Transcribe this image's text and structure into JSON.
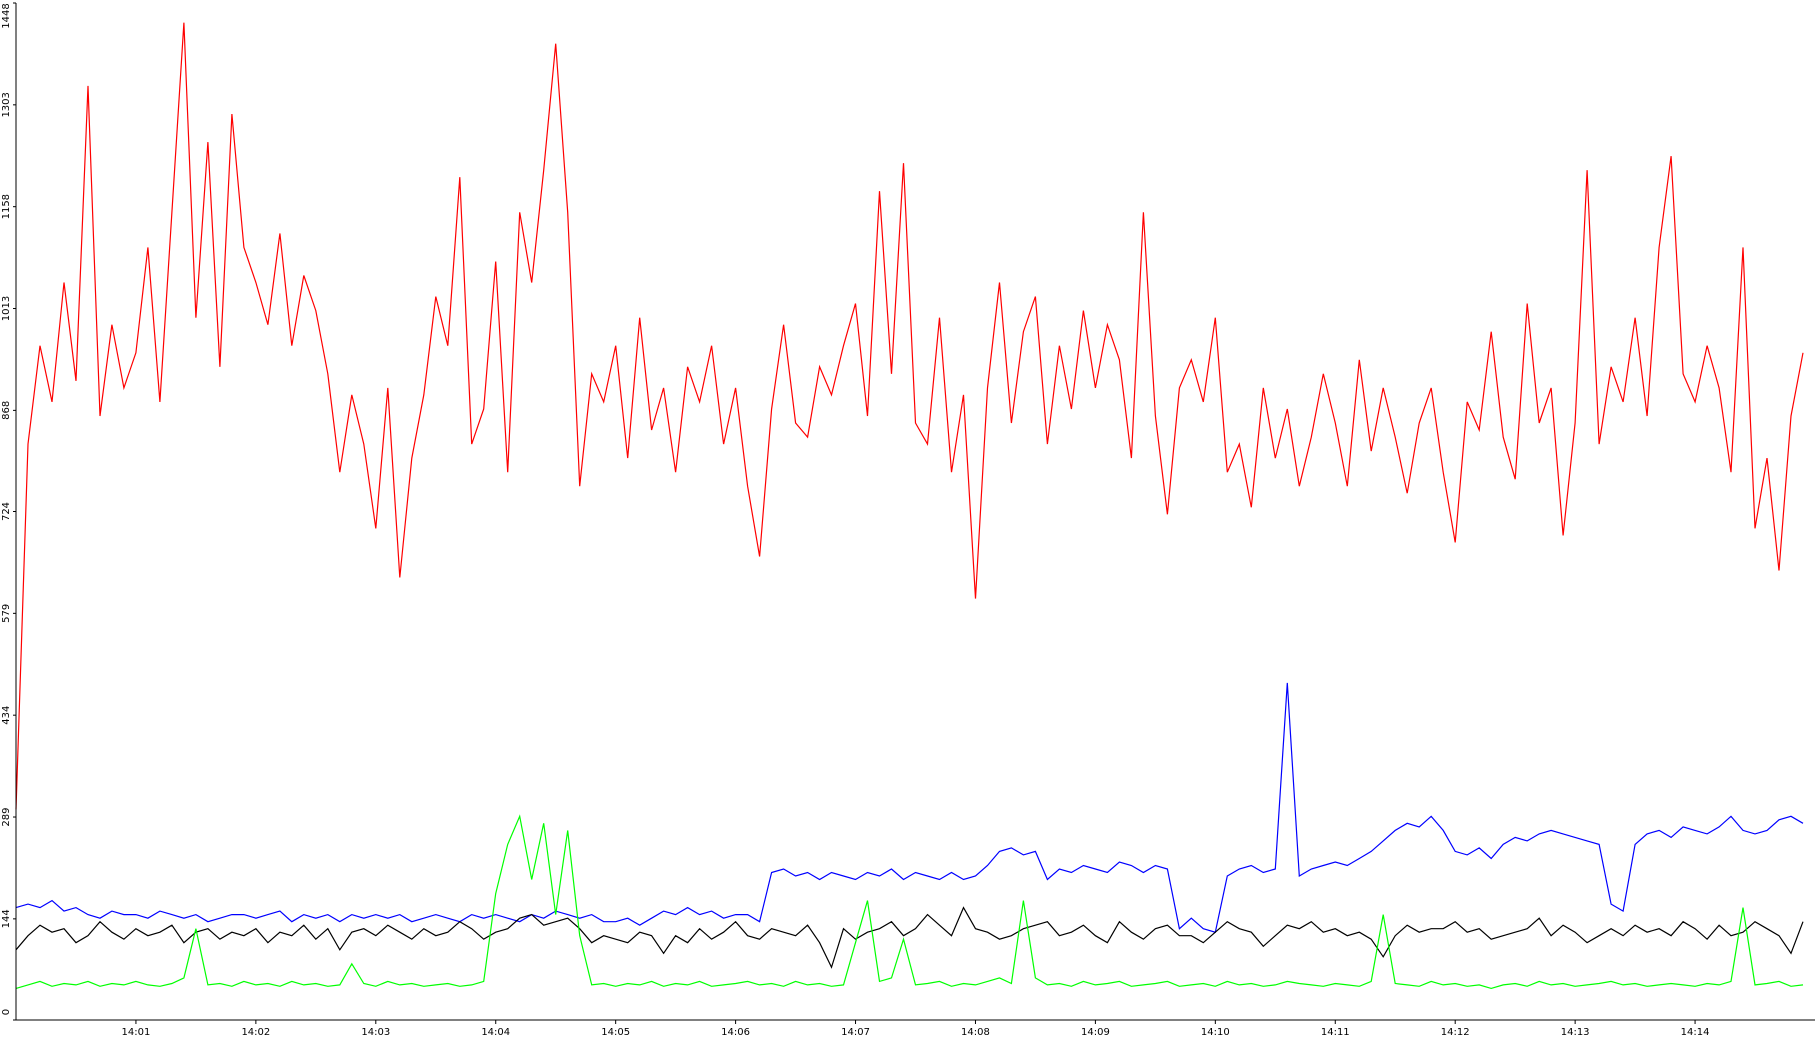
{
  "chart_data": {
    "type": "line",
    "categories": [
      null,
      null,
      null,
      null,
      null,
      null,
      null,
      null,
      null,
      null,
      "14:01",
      null,
      null,
      null,
      null,
      null,
      null,
      null,
      null,
      null,
      "14:02",
      null,
      null,
      null,
      null,
      null,
      null,
      null,
      null,
      null,
      "14:03",
      null,
      null,
      null,
      null,
      null,
      null,
      null,
      null,
      null,
      "14:04",
      null,
      null,
      null,
      null,
      null,
      null,
      null,
      null,
      null,
      "14:05",
      null,
      null,
      null,
      null,
      null,
      null,
      null,
      null,
      null,
      "14:06",
      null,
      null,
      null,
      null,
      null,
      null,
      null,
      null,
      null,
      "14:07",
      null,
      null,
      null,
      null,
      null,
      null,
      null,
      null,
      null,
      "14:08",
      null,
      null,
      null,
      null,
      null,
      null,
      null,
      null,
      null,
      "14:09",
      null,
      null,
      null,
      null,
      null,
      null,
      null,
      null,
      null,
      "14:10",
      null,
      null,
      null,
      null,
      null,
      null,
      null,
      null,
      null,
      "14:11",
      null,
      null,
      null,
      null,
      null,
      null,
      null,
      null,
      null,
      "14:12",
      null,
      null,
      null,
      null,
      null,
      null,
      null,
      null,
      null,
      "14:13",
      null,
      null,
      null,
      null,
      null,
      null,
      null,
      null,
      null,
      "14:14",
      null,
      null,
      null,
      null,
      null,
      null,
      null,
      null,
      null
    ],
    "ylim": [
      0,
      1448
    ],
    "yticks": [
      0,
      144,
      289,
      434,
      579,
      724,
      868,
      1013,
      1158,
      1303,
      1448
    ],
    "series": [
      {
        "color": "#ff0000",
        "values": [
          300,
          820,
          960,
          880,
          1050,
          910,
          1330,
          860,
          990,
          900,
          950,
          1100,
          880,
          1150,
          1420,
          1000,
          1250,
          930,
          1290,
          1100,
          1050,
          990,
          1120,
          960,
          1060,
          1010,
          920,
          780,
          890,
          820,
          700,
          900,
          630,
          800,
          890,
          1030,
          960,
          1200,
          820,
          870,
          1080,
          780,
          1150,
          1050,
          1210,
          1390,
          1150,
          760,
          920,
          880,
          960,
          800,
          1000,
          840,
          900,
          780,
          930,
          880,
          960,
          820,
          900,
          760,
          660,
          870,
          990,
          850,
          830,
          930,
          890,
          960,
          1020,
          860,
          1180,
          920,
          1220,
          850,
          820,
          1000,
          780,
          890,
          600,
          900,
          1050,
          850,
          980,
          1030,
          820,
          960,
          870,
          1010,
          900,
          990,
          940,
          800,
          1150,
          860,
          720,
          900,
          940,
          880,
          1000,
          780,
          820,
          730,
          900,
          800,
          870,
          760,
          830,
          920,
          850,
          760,
          940,
          810,
          900,
          830,
          750,
          850,
          900,
          780,
          680,
          880,
          840,
          980,
          830,
          770,
          1020,
          850,
          900,
          690,
          850,
          1210,
          820,
          930,
          880,
          1000,
          860,
          1100,
          1230,
          920,
          880,
          960,
          900,
          780,
          1100,
          700,
          800,
          640,
          860,
          950
        ]
      },
      {
        "color": "#0000ff",
        "values": [
          160,
          165,
          160,
          170,
          155,
          160,
          150,
          145,
          155,
          150,
          150,
          145,
          155,
          150,
          145,
          150,
          140,
          145,
          150,
          150,
          145,
          150,
          155,
          140,
          150,
          145,
          150,
          140,
          150,
          145,
          150,
          145,
          150,
          140,
          145,
          150,
          145,
          140,
          150,
          145,
          150,
          145,
          140,
          150,
          145,
          155,
          150,
          145,
          150,
          140,
          140,
          145,
          135,
          145,
          155,
          150,
          160,
          150,
          155,
          145,
          150,
          150,
          140,
          210,
          215,
          205,
          210,
          200,
          210,
          205,
          200,
          210,
          205,
          215,
          200,
          210,
          205,
          200,
          210,
          200,
          205,
          220,
          240,
          245,
          235,
          240,
          200,
          215,
          210,
          220,
          215,
          210,
          225,
          220,
          210,
          220,
          215,
          130,
          145,
          130,
          125,
          205,
          215,
          220,
          210,
          215,
          480,
          205,
          215,
          220,
          225,
          220,
          230,
          240,
          255,
          270,
          280,
          275,
          290,
          270,
          240,
          235,
          245,
          230,
          250,
          260,
          255,
          265,
          270,
          265,
          260,
          255,
          250,
          165,
          155,
          250,
          265,
          270,
          260,
          275,
          270,
          265,
          275,
          290,
          270,
          265,
          270,
          285,
          290,
          280
        ]
      },
      {
        "color": "#000000",
        "values": [
          100,
          120,
          135,
          125,
          130,
          110,
          120,
          140,
          125,
          115,
          130,
          120,
          125,
          135,
          110,
          125,
          130,
          115,
          125,
          120,
          130,
          110,
          125,
          120,
          135,
          115,
          130,
          100,
          125,
          130,
          120,
          135,
          125,
          115,
          130,
          120,
          125,
          140,
          130,
          115,
          125,
          130,
          145,
          150,
          135,
          140,
          145,
          130,
          110,
          120,
          115,
          110,
          125,
          120,
          95,
          120,
          110,
          130,
          115,
          125,
          140,
          120,
          115,
          130,
          125,
          120,
          135,
          110,
          75,
          130,
          115,
          125,
          130,
          140,
          120,
          130,
          150,
          135,
          120,
          160,
          130,
          125,
          115,
          120,
          130,
          135,
          140,
          120,
          125,
          135,
          120,
          110,
          140,
          125,
          115,
          130,
          135,
          120,
          120,
          110,
          125,
          140,
          130,
          125,
          105,
          120,
          135,
          130,
          140,
          125,
          130,
          120,
          125,
          115,
          90,
          120,
          135,
          125,
          130,
          130,
          140,
          125,
          130,
          115,
          120,
          125,
          130,
          145,
          120,
          135,
          125,
          110,
          120,
          130,
          120,
          135,
          125,
          130,
          120,
          140,
          130,
          115,
          135,
          120,
          125,
          140,
          130,
          120,
          95,
          140
        ]
      },
      {
        "color": "#00ff00",
        "values": [
          45,
          50,
          55,
          48,
          52,
          50,
          55,
          48,
          52,
          50,
          55,
          50,
          48,
          52,
          60,
          130,
          50,
          52,
          48,
          55,
          50,
          52,
          48,
          55,
          50,
          52,
          48,
          50,
          80,
          52,
          48,
          55,
          50,
          52,
          48,
          50,
          52,
          48,
          50,
          55,
          180,
          250,
          290,
          200,
          280,
          150,
          270,
          120,
          50,
          52,
          48,
          52,
          50,
          55,
          48,
          52,
          50,
          55,
          48,
          50,
          52,
          55,
          50,
          52,
          48,
          55,
          50,
          52,
          48,
          50,
          110,
          170,
          55,
          60,
          115,
          50,
          52,
          55,
          48,
          52,
          50,
          55,
          60,
          52,
          170,
          60,
          50,
          52,
          48,
          55,
          50,
          52,
          55,
          48,
          50,
          52,
          55,
          48,
          50,
          52,
          48,
          55,
          50,
          52,
          48,
          50,
          55,
          52,
          50,
          48,
          52,
          50,
          48,
          55,
          150,
          52,
          50,
          48,
          55,
          50,
          52,
          48,
          50,
          45,
          50,
          52,
          48,
          55,
          50,
          52,
          48,
          50,
          52,
          55,
          50,
          52,
          48,
          50,
          52,
          50,
          48,
          52,
          50,
          55,
          160,
          50,
          52,
          55,
          48,
          50
        ]
      }
    ]
  }
}
